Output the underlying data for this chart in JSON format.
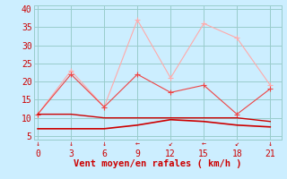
{
  "x": [
    0,
    3,
    6,
    9,
    12,
    15,
    18,
    21
  ],
  "line1_y": [
    7,
    7,
    7,
    8,
    9.5,
    9,
    8,
    7.5
  ],
  "line2_y": [
    11,
    11,
    10,
    10,
    10,
    10,
    10,
    9
  ],
  "line3_y": [
    11,
    22,
    13,
    22,
    17,
    19,
    11,
    18
  ],
  "line4_y": [
    11,
    23,
    13,
    37,
    21,
    36,
    32,
    19
  ],
  "line1_color": "#cc0000",
  "line2_color": "#cc0000",
  "line3_color": "#ee4444",
  "line4_color": "#ffaaaa",
  "xlabel": "Vent moyen/en rafales ( km/h )",
  "xlabel_color": "#cc0000",
  "xlabel_fontsize": 7.5,
  "yticks": [
    5,
    10,
    15,
    20,
    25,
    30,
    35,
    40
  ],
  "xticks": [
    0,
    3,
    6,
    9,
    12,
    15,
    18,
    21
  ],
  "ylim": [
    4,
    41
  ],
  "xlim": [
    -0.3,
    22
  ],
  "bg_color": "#cceeff",
  "grid_color": "#99cccc",
  "tick_label_color": "#cc0000",
  "tick_label_fontsize": 7,
  "arrow_labels": [
    "↓",
    "↓",
    "↓",
    "←",
    "↙",
    "←",
    "↙",
    "↓"
  ]
}
